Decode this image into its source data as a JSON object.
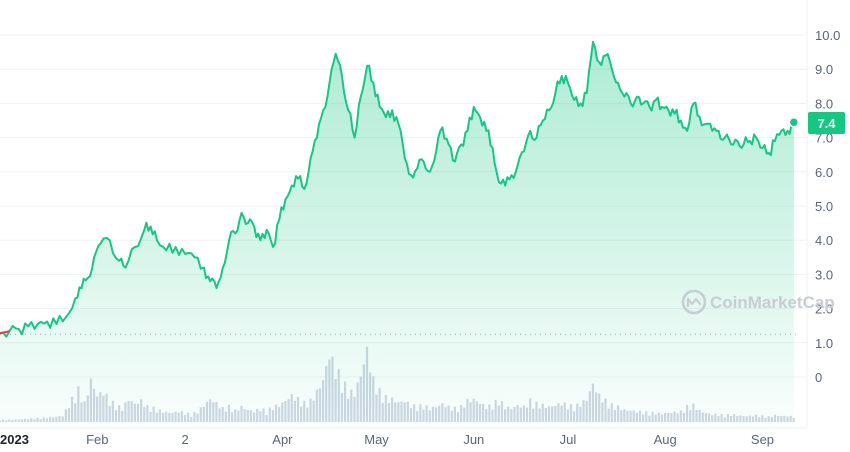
{
  "chart_data": {
    "type": "area",
    "y_ticks": [
      "10.0",
      "9.0",
      "8.0",
      "7.0",
      "6.0",
      "5.0",
      "4.0",
      "3.0",
      "2.0",
      "1.0"
    ],
    "ylim": [
      0,
      10.4
    ],
    "volume_tick": "0",
    "x_labels": [
      {
        "label": "2023",
        "day": 0
      },
      {
        "label": "Feb",
        "day": 31
      },
      {
        "label": "2",
        "day": 59
      },
      {
        "label": "Apr",
        "day": 90
      },
      {
        "label": "May",
        "day": 120
      },
      {
        "label": "Jun",
        "day": 151
      },
      {
        "label": "Jul",
        "day": 181
      },
      {
        "label": "Aug",
        "day": 212
      },
      {
        "label": "Sep",
        "day": 243
      }
    ],
    "open_price": 1.28,
    "current_price": "7.4",
    "price_series": [
      [
        0,
        1.28
      ],
      [
        3,
        1.34
      ],
      [
        6,
        1.4
      ],
      [
        9,
        1.48
      ],
      [
        12,
        1.55
      ],
      [
        15,
        1.62
      ],
      [
        18,
        1.55
      ],
      [
        21,
        1.75
      ],
      [
        24,
        2.3
      ],
      [
        26,
        2.6
      ],
      [
        28,
        2.9
      ],
      [
        30,
        3.5
      ],
      [
        32,
        3.9
      ],
      [
        35,
        4.0
      ],
      [
        38,
        3.4
      ],
      [
        40,
        3.2
      ],
      [
        43,
        3.8
      ],
      [
        46,
        4.3
      ],
      [
        48,
        4.4
      ],
      [
        50,
        4.0
      ],
      [
        53,
        3.7
      ],
      [
        56,
        3.8
      ],
      [
        59,
        3.6
      ],
      [
        62,
        3.5
      ],
      [
        65,
        3.2
      ],
      [
        67,
        2.8
      ],
      [
        69,
        2.6
      ],
      [
        71,
        3.2
      ],
      [
        73,
        4.0
      ],
      [
        75,
        4.2
      ],
      [
        77,
        4.8
      ],
      [
        79,
        4.5
      ],
      [
        81,
        4.4
      ],
      [
        83,
        4.0
      ],
      [
        85,
        4.3
      ],
      [
        87,
        3.8
      ],
      [
        89,
        4.6
      ],
      [
        91,
        5.2
      ],
      [
        93,
        5.6
      ],
      [
        95,
        5.8
      ],
      [
        97,
        5.5
      ],
      [
        99,
        6.4
      ],
      [
        101,
        7.0
      ],
      [
        103,
        7.8
      ],
      [
        105,
        8.6
      ],
      [
        107,
        9.45
      ],
      [
        109,
        8.8
      ],
      [
        111,
        7.8
      ],
      [
        113,
        7.0
      ],
      [
        115,
        8.2
      ],
      [
        117,
        9.1
      ],
      [
        119,
        8.6
      ],
      [
        121,
        7.9
      ],
      [
        123,
        7.6
      ],
      [
        125,
        7.8
      ],
      [
        127,
        7.4
      ],
      [
        129,
        6.4
      ],
      [
        131,
        5.9
      ],
      [
        133,
        6.1
      ],
      [
        135,
        6.3
      ],
      [
        137,
        6.0
      ],
      [
        139,
        6.6
      ],
      [
        141,
        7.3
      ],
      [
        143,
        6.8
      ],
      [
        145,
        6.3
      ],
      [
        147,
        6.8
      ],
      [
        149,
        7.2
      ],
      [
        151,
        7.9
      ],
      [
        153,
        7.6
      ],
      [
        155,
        7.2
      ],
      [
        157,
        6.7
      ],
      [
        159,
        5.7
      ],
      [
        161,
        5.6
      ],
      [
        163,
        5.9
      ],
      [
        165,
        6.2
      ],
      [
        167,
        6.6
      ],
      [
        169,
        7.2
      ],
      [
        171,
        7.0
      ],
      [
        173,
        7.5
      ],
      [
        175,
        7.8
      ],
      [
        177,
        8.3
      ],
      [
        179,
        8.8
      ],
      [
        181,
        8.6
      ],
      [
        183,
        8.1
      ],
      [
        185,
        8.0
      ],
      [
        187,
        8.3
      ],
      [
        189,
        9.8
      ],
      [
        191,
        9.2
      ],
      [
        193,
        9.4
      ],
      [
        195,
        9.0
      ],
      [
        197,
        8.6
      ],
      [
        199,
        8.2
      ],
      [
        201,
        8.0
      ],
      [
        203,
        8.2
      ],
      [
        205,
        8.0
      ],
      [
        207,
        7.9
      ],
      [
        209,
        8.1
      ],
      [
        211,
        7.9
      ],
      [
        213,
        7.8
      ],
      [
        215,
        7.7
      ],
      [
        217,
        7.5
      ],
      [
        219,
        7.2
      ],
      [
        221,
        8.0
      ],
      [
        223,
        7.6
      ],
      [
        225,
        7.4
      ],
      [
        227,
        7.2
      ],
      [
        229,
        7.2
      ],
      [
        231,
        7.0
      ],
      [
        233,
        6.8
      ],
      [
        235,
        6.9
      ],
      [
        237,
        6.8
      ],
      [
        239,
        6.9
      ],
      [
        241,
        7.0
      ],
      [
        243,
        6.7
      ],
      [
        245,
        6.55
      ],
      [
        247,
        6.9
      ],
      [
        249,
        7.2
      ],
      [
        251,
        7.2
      ],
      [
        253,
        7.4
      ]
    ],
    "volume_series": [
      [
        0,
        0.03
      ],
      [
        4,
        0.03
      ],
      [
        8,
        0.04
      ],
      [
        12,
        0.05
      ],
      [
        16,
        0.06
      ],
      [
        20,
        0.08
      ],
      [
        23,
        0.3
      ],
      [
        25,
        0.42
      ],
      [
        27,
        0.25
      ],
      [
        29,
        0.55
      ],
      [
        31,
        0.35
      ],
      [
        33,
        0.4
      ],
      [
        35,
        0.28
      ],
      [
        37,
        0.22
      ],
      [
        39,
        0.18
      ],
      [
        41,
        0.3
      ],
      [
        43,
        0.24
      ],
      [
        45,
        0.28
      ],
      [
        47,
        0.2
      ],
      [
        49,
        0.18
      ],
      [
        51,
        0.15
      ],
      [
        53,
        0.13
      ],
      [
        55,
        0.12
      ],
      [
        57,
        0.14
      ],
      [
        59,
        0.12
      ],
      [
        61,
        0.1
      ],
      [
        63,
        0.14
      ],
      [
        65,
        0.22
      ],
      [
        67,
        0.3
      ],
      [
        69,
        0.25
      ],
      [
        71,
        0.18
      ],
      [
        73,
        0.2
      ],
      [
        75,
        0.15
      ],
      [
        77,
        0.2
      ],
      [
        79,
        0.16
      ],
      [
        81,
        0.14
      ],
      [
        83,
        0.18
      ],
      [
        85,
        0.14
      ],
      [
        87,
        0.2
      ],
      [
        89,
        0.22
      ],
      [
        91,
        0.28
      ],
      [
        93,
        0.35
      ],
      [
        95,
        0.3
      ],
      [
        97,
        0.25
      ],
      [
        99,
        0.28
      ],
      [
        101,
        0.4
      ],
      [
        103,
        0.55
      ],
      [
        105,
        0.9
      ],
      [
        107,
        0.7
      ],
      [
        109,
        0.55
      ],
      [
        111,
        0.4
      ],
      [
        113,
        0.38
      ],
      [
        115,
        0.62
      ],
      [
        117,
        0.95
      ],
      [
        119,
        0.55
      ],
      [
        121,
        0.4
      ],
      [
        123,
        0.32
      ],
      [
        125,
        0.3
      ],
      [
        127,
        0.26
      ],
      [
        129,
        0.28
      ],
      [
        131,
        0.22
      ],
      [
        133,
        0.2
      ],
      [
        135,
        0.22
      ],
      [
        137,
        0.18
      ],
      [
        139,
        0.2
      ],
      [
        141,
        0.24
      ],
      [
        143,
        0.2
      ],
      [
        145,
        0.18
      ],
      [
        147,
        0.2
      ],
      [
        149,
        0.28
      ],
      [
        151,
        0.3
      ],
      [
        153,
        0.25
      ],
      [
        155,
        0.2
      ],
      [
        157,
        0.22
      ],
      [
        159,
        0.3
      ],
      [
        161,
        0.2
      ],
      [
        163,
        0.18
      ],
      [
        165,
        0.22
      ],
      [
        167,
        0.2
      ],
      [
        169,
        0.28
      ],
      [
        171,
        0.24
      ],
      [
        173,
        0.22
      ],
      [
        175,
        0.2
      ],
      [
        177,
        0.22
      ],
      [
        179,
        0.25
      ],
      [
        181,
        0.22
      ],
      [
        183,
        0.2
      ],
      [
        185,
        0.24
      ],
      [
        187,
        0.3
      ],
      [
        189,
        0.5
      ],
      [
        191,
        0.35
      ],
      [
        193,
        0.28
      ],
      [
        195,
        0.22
      ],
      [
        197,
        0.2
      ],
      [
        199,
        0.16
      ],
      [
        201,
        0.15
      ],
      [
        203,
        0.14
      ],
      [
        205,
        0.13
      ],
      [
        207,
        0.12
      ],
      [
        209,
        0.12
      ],
      [
        211,
        0.11
      ],
      [
        213,
        0.12
      ],
      [
        215,
        0.13
      ],
      [
        217,
        0.14
      ],
      [
        219,
        0.2
      ],
      [
        221,
        0.22
      ],
      [
        223,
        0.15
      ],
      [
        225,
        0.12
      ],
      [
        227,
        0.1
      ],
      [
        229,
        0.1
      ],
      [
        231,
        0.09
      ],
      [
        233,
        0.1
      ],
      [
        235,
        0.09
      ],
      [
        237,
        0.08
      ],
      [
        239,
        0.08
      ],
      [
        241,
        0.09
      ],
      [
        243,
        0.08
      ],
      [
        245,
        0.07
      ],
      [
        247,
        0.09
      ],
      [
        249,
        0.08
      ],
      [
        251,
        0.08
      ],
      [
        253,
        0.07
      ]
    ],
    "colors": {
      "line": "#16c784",
      "line_start": "#ea3943",
      "area_top": "#16c784",
      "volume": "#cfd6e4",
      "grid": "#eff2f5",
      "axis_text": "#58667e",
      "badge": "#16c784"
    }
  },
  "watermark": {
    "text": "CoinMarketCap",
    "icon": "coinmarketcap-logo-icon"
  }
}
